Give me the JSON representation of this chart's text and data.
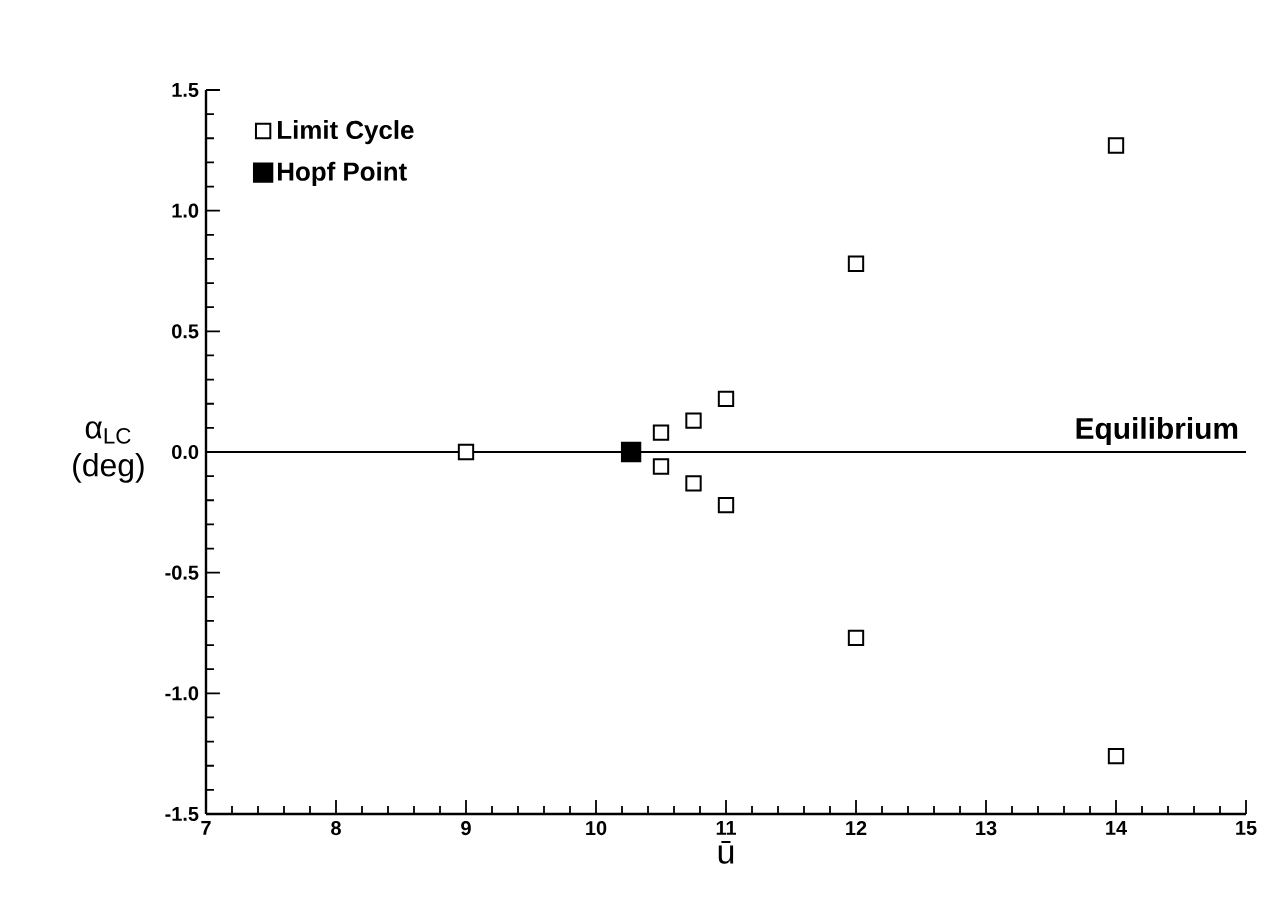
{
  "chart_data": {
    "type": "scatter",
    "xlabel": "ū",
    "ylabel": "α$_{LC}$ (deg)",
    "xlim": [
      7,
      15
    ],
    "xticks": [
      7,
      8,
      9,
      10,
      11,
      12,
      13,
      14,
      15
    ],
    "ylim": [
      -1.5,
      1.5
    ],
    "yticks": [
      {
        "value": -1.5,
        "label": "-1.5"
      },
      {
        "value": -1.0,
        "label": "-1.0"
      },
      {
        "value": -0.5,
        "label": "-0.5"
      },
      {
        "value": 0,
        "label": "0.0"
      },
      {
        "value": 0.5,
        "label": "0.5"
      },
      {
        "value": 1.0,
        "label": "1.0"
      },
      {
        "value": 1.5,
        "label": "1.5"
      }
    ],
    "series": [
      {
        "name": "Limit Cycle",
        "color": "#ffffff",
        "marker": "square",
        "x": [
          9,
          10.5,
          10.5,
          10.75,
          10.75,
          11,
          11,
          12,
          12,
          14,
          14
        ],
        "values": [
          0,
          0.08,
          -0.06,
          0.13,
          -0.13,
          0.22,
          -0.22,
          0.78,
          -0.77,
          1.27,
          -1.26
        ]
      },
      {
        "name": "Hopf Point",
        "color": "#000000",
        "marker": "square",
        "x": [
          10.27
        ],
        "values": [
          0
        ]
      }
    ],
    "ref_lines": [
      {
        "axis": "y",
        "value": 0,
        "label": "Equilibrium",
        "color": "#000000"
      }
    ],
    "legend": "top left",
    "grid": false
  }
}
